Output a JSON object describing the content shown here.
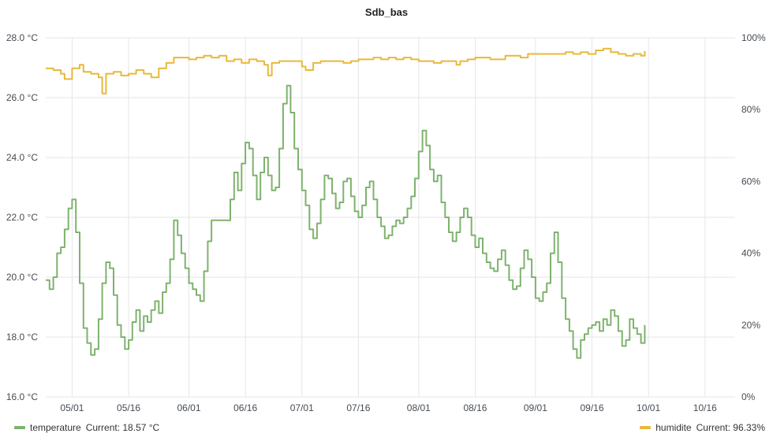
{
  "chart_data": {
    "type": "line",
    "title": "Sdb_bas",
    "x_ticks": [
      "05/01",
      "05/16",
      "06/01",
      "06/16",
      "07/01",
      "07/16",
      "08/01",
      "08/16",
      "09/01",
      "09/16",
      "10/01",
      "10/16"
    ],
    "x_range": [
      "04/24",
      "10/24"
    ],
    "y_left": {
      "range": [
        16,
        28
      ],
      "unit": "°C",
      "ticks": [
        "16.0 °C",
        "18.0 °C",
        "20.0 °C",
        "22.0 °C",
        "24.0 °C",
        "26.0 °C",
        "28.0 °C"
      ]
    },
    "y_right": {
      "range": [
        0,
        100
      ],
      "unit": "%",
      "ticks": [
        "0%",
        "20%",
        "40%",
        "60%",
        "80%",
        "100%"
      ]
    },
    "grid": true,
    "legend_position": "bottom",
    "series": [
      {
        "name": "temperature",
        "axis": "left",
        "color": "#7eb26d",
        "current_label": "Current: 18.57 °C",
        "points": [
          [
            "04/24",
            19.9
          ],
          [
            "04/25",
            19.6
          ],
          [
            "04/26",
            20.0
          ],
          [
            "04/27",
            20.8
          ],
          [
            "04/28",
            21.0
          ],
          [
            "04/29",
            21.6
          ],
          [
            "04/30",
            22.3
          ],
          [
            "05/01",
            22.6
          ],
          [
            "05/02",
            21.5
          ],
          [
            "05/03",
            19.8
          ],
          [
            "05/04",
            18.3
          ],
          [
            "05/05",
            17.8
          ],
          [
            "05/06",
            17.4
          ],
          [
            "05/07",
            17.6
          ],
          [
            "05/08",
            18.6
          ],
          [
            "05/09",
            19.8
          ],
          [
            "05/10",
            20.5
          ],
          [
            "05/11",
            20.3
          ],
          [
            "05/12",
            19.4
          ],
          [
            "05/13",
            18.4
          ],
          [
            "05/14",
            18.0
          ],
          [
            "05/15",
            17.6
          ],
          [
            "05/16",
            17.9
          ],
          [
            "05/17",
            18.5
          ],
          [
            "05/18",
            18.9
          ],
          [
            "05/19",
            18.2
          ],
          [
            "05/20",
            18.7
          ],
          [
            "05/21",
            18.5
          ],
          [
            "05/22",
            18.9
          ],
          [
            "05/23",
            19.2
          ],
          [
            "05/24",
            18.8
          ],
          [
            "05/25",
            19.5
          ],
          [
            "05/26",
            19.8
          ],
          [
            "05/27",
            20.6
          ],
          [
            "05/28",
            21.9
          ],
          [
            "05/29",
            21.4
          ],
          [
            "05/30",
            20.8
          ],
          [
            "05/31",
            20.3
          ],
          [
            "06/01",
            19.8
          ],
          [
            "06/02",
            19.6
          ],
          [
            "06/03",
            19.4
          ],
          [
            "06/04",
            19.2
          ],
          [
            "06/05",
            20.2
          ],
          [
            "06/06",
            21.2
          ],
          [
            "06/07",
            21.9
          ],
          [
            "06/08",
            21.9
          ],
          [
            "06/09",
            21.9
          ],
          [
            "06/10",
            21.9
          ],
          [
            "06/11",
            21.9
          ],
          [
            "06/12",
            22.6
          ],
          [
            "06/13",
            23.5
          ],
          [
            "06/14",
            22.9
          ],
          [
            "06/15",
            23.8
          ],
          [
            "06/16",
            24.5
          ],
          [
            "06/17",
            24.3
          ],
          [
            "06/18",
            23.4
          ],
          [
            "06/19",
            22.6
          ],
          [
            "06/20",
            23.5
          ],
          [
            "06/21",
            24.0
          ],
          [
            "06/22",
            23.4
          ],
          [
            "06/23",
            22.9
          ],
          [
            "06/24",
            23.0
          ],
          [
            "06/25",
            24.3
          ],
          [
            "06/26",
            25.8
          ],
          [
            "06/27",
            26.4
          ],
          [
            "06/28",
            25.5
          ],
          [
            "06/29",
            24.3
          ],
          [
            "06/30",
            23.6
          ],
          [
            "07/01",
            22.9
          ],
          [
            "07/02",
            22.4
          ],
          [
            "07/03",
            21.6
          ],
          [
            "07/04",
            21.3
          ],
          [
            "07/05",
            21.8
          ],
          [
            "07/06",
            22.6
          ],
          [
            "07/07",
            23.4
          ],
          [
            "07/08",
            23.3
          ],
          [
            "07/09",
            22.8
          ],
          [
            "07/10",
            22.3
          ],
          [
            "07/11",
            22.5
          ],
          [
            "07/12",
            23.2
          ],
          [
            "07/13",
            23.3
          ],
          [
            "07/14",
            22.7
          ],
          [
            "07/15",
            22.2
          ],
          [
            "07/16",
            22.0
          ],
          [
            "07/17",
            22.4
          ],
          [
            "07/18",
            23.0
          ],
          [
            "07/19",
            23.2
          ],
          [
            "07/20",
            22.6
          ],
          [
            "07/21",
            22.0
          ],
          [
            "07/22",
            21.7
          ],
          [
            "07/23",
            21.3
          ],
          [
            "07/24",
            21.4
          ],
          [
            "07/25",
            21.7
          ],
          [
            "07/26",
            21.9
          ],
          [
            "07/27",
            21.8
          ],
          [
            "07/28",
            22.0
          ],
          [
            "07/29",
            22.3
          ],
          [
            "07/30",
            22.7
          ],
          [
            "07/31",
            23.3
          ],
          [
            "08/01",
            24.2
          ],
          [
            "08/02",
            24.9
          ],
          [
            "08/03",
            24.4
          ],
          [
            "08/04",
            23.6
          ],
          [
            "08/05",
            23.2
          ],
          [
            "08/06",
            23.4
          ],
          [
            "08/07",
            22.5
          ],
          [
            "08/08",
            22.0
          ],
          [
            "08/09",
            21.5
          ],
          [
            "08/10",
            21.2
          ],
          [
            "08/11",
            21.5
          ],
          [
            "08/12",
            22.0
          ],
          [
            "08/13",
            22.3
          ],
          [
            "08/14",
            22.0
          ],
          [
            "08/15",
            21.4
          ],
          [
            "08/16",
            21.0
          ],
          [
            "08/17",
            21.3
          ],
          [
            "08/18",
            20.8
          ],
          [
            "08/19",
            20.5
          ],
          [
            "08/20",
            20.3
          ],
          [
            "08/21",
            20.2
          ],
          [
            "08/22",
            20.6
          ],
          [
            "08/23",
            20.9
          ],
          [
            "08/24",
            20.4
          ],
          [
            "08/25",
            19.9
          ],
          [
            "08/26",
            19.6
          ],
          [
            "08/27",
            19.7
          ],
          [
            "08/28",
            20.3
          ],
          [
            "08/29",
            20.9
          ],
          [
            "08/30",
            20.6
          ],
          [
            "08/31",
            20.0
          ],
          [
            "09/01",
            19.3
          ],
          [
            "09/02",
            19.2
          ],
          [
            "09/03",
            19.5
          ],
          [
            "09/04",
            19.8
          ],
          [
            "09/05",
            20.8
          ],
          [
            "09/06",
            21.5
          ],
          [
            "09/07",
            20.5
          ],
          [
            "09/08",
            19.3
          ],
          [
            "09/09",
            18.6
          ],
          [
            "09/10",
            18.2
          ],
          [
            "09/11",
            17.6
          ],
          [
            "09/12",
            17.3
          ],
          [
            "09/13",
            17.9
          ],
          [
            "09/14",
            18.1
          ],
          [
            "09/15",
            18.3
          ],
          [
            "09/16",
            18.4
          ],
          [
            "09/17",
            18.5
          ],
          [
            "09/18",
            18.2
          ],
          [
            "09/19",
            18.6
          ],
          [
            "09/20",
            18.4
          ],
          [
            "09/21",
            18.9
          ],
          [
            "09/22",
            18.7
          ],
          [
            "09/23",
            18.2
          ],
          [
            "09/24",
            17.7
          ],
          [
            "09/25",
            17.9
          ],
          [
            "09/26",
            18.6
          ],
          [
            "09/27",
            18.3
          ],
          [
            "09/28",
            18.1
          ],
          [
            "09/29",
            17.8
          ],
          [
            "09/30",
            18.4
          ]
        ]
      },
      {
        "name": "humidite",
        "axis": "right",
        "color": "#eab839",
        "current_label": "Current: 96.33%",
        "points": [
          [
            "04/24",
            91.5
          ],
          [
            "04/26",
            91.0
          ],
          [
            "04/28",
            90.0
          ],
          [
            "04/29",
            88.5
          ],
          [
            "05/01",
            91.5
          ],
          [
            "05/03",
            92.5
          ],
          [
            "05/04",
            90.5
          ],
          [
            "05/06",
            90.0
          ],
          [
            "05/08",
            89.0
          ],
          [
            "05/09",
            84.5
          ],
          [
            "05/10",
            90.0
          ],
          [
            "05/12",
            90.5
          ],
          [
            "05/14",
            89.5
          ],
          [
            "05/16",
            90.0
          ],
          [
            "05/18",
            91.0
          ],
          [
            "05/20",
            90.0
          ],
          [
            "05/22",
            89.0
          ],
          [
            "05/24",
            91.5
          ],
          [
            "05/26",
            93.0
          ],
          [
            "05/28",
            94.5
          ],
          [
            "05/30",
            94.5
          ],
          [
            "06/01",
            94.0
          ],
          [
            "06/03",
            94.5
          ],
          [
            "06/05",
            95.0
          ],
          [
            "06/07",
            94.5
          ],
          [
            "06/09",
            95.0
          ],
          [
            "06/11",
            93.5
          ],
          [
            "06/13",
            94.0
          ],
          [
            "06/15",
            93.0
          ],
          [
            "06/17",
            94.0
          ],
          [
            "06/19",
            93.5
          ],
          [
            "06/21",
            92.5
          ],
          [
            "06/22",
            89.5
          ],
          [
            "06/23",
            93.0
          ],
          [
            "06/25",
            93.5
          ],
          [
            "06/27",
            93.5
          ],
          [
            "06/29",
            93.5
          ],
          [
            "07/01",
            92.0
          ],
          [
            "07/02",
            91.0
          ],
          [
            "07/04",
            93.0
          ],
          [
            "07/06",
            93.5
          ],
          [
            "07/08",
            93.5
          ],
          [
            "07/10",
            93.5
          ],
          [
            "07/12",
            93.0
          ],
          [
            "07/14",
            93.5
          ],
          [
            "07/16",
            94.0
          ],
          [
            "07/18",
            94.0
          ],
          [
            "07/20",
            94.5
          ],
          [
            "07/22",
            94.0
          ],
          [
            "07/24",
            94.5
          ],
          [
            "07/26",
            94.0
          ],
          [
            "07/28",
            94.5
          ],
          [
            "07/30",
            94.0
          ],
          [
            "08/01",
            93.5
          ],
          [
            "08/03",
            93.5
          ],
          [
            "08/05",
            93.0
          ],
          [
            "08/07",
            93.5
          ],
          [
            "08/09",
            93.5
          ],
          [
            "08/11",
            92.5
          ],
          [
            "08/12",
            93.5
          ],
          [
            "08/14",
            94.0
          ],
          [
            "08/16",
            94.5
          ],
          [
            "08/18",
            94.5
          ],
          [
            "08/20",
            94.0
          ],
          [
            "08/22",
            94.0
          ],
          [
            "08/24",
            95.0
          ],
          [
            "08/26",
            95.0
          ],
          [
            "08/28",
            94.5
          ],
          [
            "08/30",
            95.5
          ],
          [
            "09/01",
            95.5
          ],
          [
            "09/03",
            95.5
          ],
          [
            "09/05",
            95.5
          ],
          [
            "09/07",
            95.5
          ],
          [
            "09/09",
            96.0
          ],
          [
            "09/11",
            95.5
          ],
          [
            "09/13",
            96.0
          ],
          [
            "09/15",
            95.5
          ],
          [
            "09/17",
            96.5
          ],
          [
            "09/19",
            97.0
          ],
          [
            "09/21",
            96.0
          ],
          [
            "09/23",
            95.5
          ],
          [
            "09/25",
            95.0
          ],
          [
            "09/27",
            95.5
          ],
          [
            "09/29",
            95.0
          ],
          [
            "09/30",
            96.3
          ]
        ]
      }
    ]
  }
}
